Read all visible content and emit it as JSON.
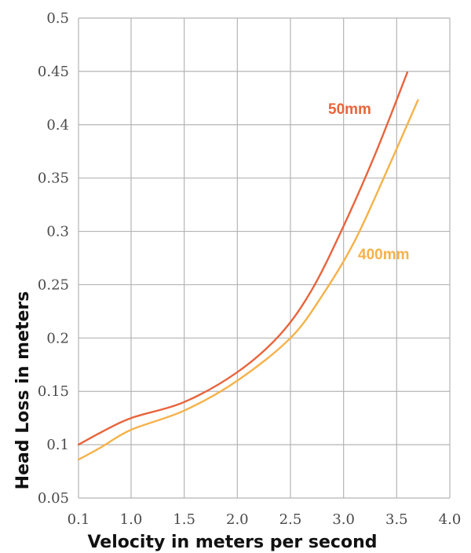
{
  "chart_data": {
    "type": "line",
    "title": "",
    "xlabel": "Velocity in meters per second",
    "ylabel": "Head Loss in meters",
    "xlim": [
      0.1,
      4.0
    ],
    "ylim": [
      0.05,
      0.5
    ],
    "x_ticks": [
      "0.1",
      "1.0",
      "1.5",
      "2.0",
      "2.5",
      "3.0",
      "3.5",
      "4.0"
    ],
    "y_ticks": [
      "0.05",
      "0.1",
      "0.15",
      "0.2",
      "0.25",
      "0.3",
      "0.35",
      "0.4",
      "0.45",
      "0.5"
    ],
    "grid": true,
    "legend": "inline labels",
    "series": [
      {
        "name": "50mm",
        "color": "#e8643c",
        "x": [
          0.1,
          0.5,
          1.0,
          1.5,
          2.0,
          2.4,
          2.7,
          3.0,
          3.3,
          3.6
        ],
        "y": [
          0.1,
          0.112,
          0.125,
          0.14,
          0.168,
          0.203,
          0.245,
          0.305,
          0.373,
          0.449
        ]
      },
      {
        "name": "400mm",
        "color": "#f5b24a",
        "x": [
          0.1,
          0.5,
          1.0,
          1.5,
          2.0,
          2.5,
          2.8,
          3.1,
          3.4,
          3.7
        ],
        "y": [
          0.086,
          0.098,
          0.114,
          0.132,
          0.16,
          0.2,
          0.24,
          0.29,
          0.355,
          0.423
        ]
      }
    ]
  }
}
